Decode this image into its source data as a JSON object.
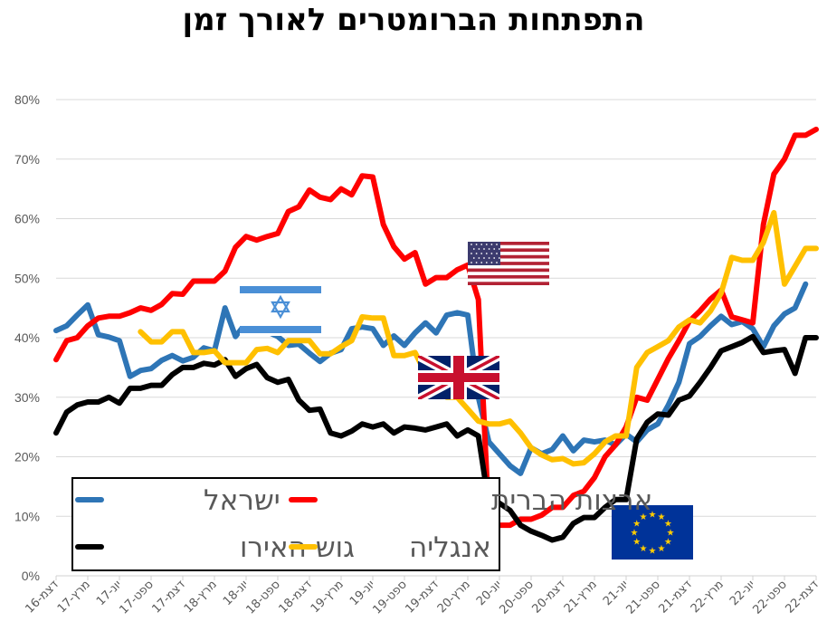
{
  "title": "התפתחות הברומטרים לאורך זמן",
  "chart_data": {
    "type": "line",
    "title": "התפתחות הברומטרים לאורך זמן",
    "ylim": [
      0,
      80
    ],
    "y_ticks": [
      "0%",
      "10%",
      "20%",
      "30%",
      "40%",
      "50%",
      "60%",
      "70%",
      "80%"
    ],
    "x_tick_labels": [
      "דצמ-16",
      "מרץ-17",
      "יונ-17",
      "ספט-17",
      "דצמ-17",
      "מרץ-18",
      "יונ-18",
      "ספט-18",
      "דצמ-18",
      "מרץ-19",
      "יונ-19",
      "ספט-19",
      "דצמ-19",
      "מרץ-20",
      "יונ-20",
      "ספט-20",
      "דצמ-20",
      "מרץ-21",
      "יונ-21",
      "ספט-21",
      "דצמ-21",
      "מרץ-22",
      "יונ-22",
      "ספט-22",
      "דצמ-22"
    ],
    "n_points": 73,
    "grid": true,
    "legend_position": "bottom-left",
    "series": [
      {
        "name": "ישראל",
        "color": "#2E75B6",
        "start_index": 0,
        "values": [
          41.2,
          42,
          43.8,
          45.5,
          40.5,
          40.1,
          39.5,
          33.5,
          34.5,
          34.8,
          36.2,
          37,
          36.1,
          36.7,
          38.3,
          37.8,
          45,
          40.2,
          42.5,
          41.5,
          41,
          40.2,
          38.7,
          38.9,
          37.4,
          36,
          37.4,
          38,
          41.5,
          41.8,
          41.5,
          38.7,
          40.3,
          38.7,
          40.8,
          42.5,
          40.8,
          43.8,
          44.2,
          43.8,
          30,
          22.5,
          20.5,
          18.5,
          17.2,
          21.5,
          20.5,
          21.2,
          23.5,
          21,
          22.8,
          22.5,
          22.8,
          22,
          23.8,
          22.5,
          24.5,
          25.5,
          28.7,
          32.5,
          39,
          40.2,
          42,
          43.6,
          42.2,
          42.7,
          41.5,
          38.5,
          42,
          44,
          45,
          49
        ]
      },
      {
        "name": "ארצות הברית",
        "color": "#FF0000",
        "start_index": 0,
        "values": [
          36.3,
          39.5,
          40,
          42,
          43.3,
          43.6,
          43.6,
          44.2,
          45,
          44.6,
          45.6,
          47.4,
          47.3,
          49.5,
          49.5,
          49.5,
          51.2,
          55.2,
          57,
          56.4,
          57,
          57.5,
          61.2,
          62,
          64.8,
          63.6,
          63.2,
          65,
          64,
          67.2,
          67,
          59,
          55.3,
          53.2,
          54.3,
          49,
          50.1,
          50.1,
          51.4,
          52.2,
          46.4,
          9.2,
          8.5,
          8.5,
          9.5,
          9.5,
          10.2,
          11.5,
          11.5,
          13.5,
          14.2,
          16.5,
          20,
          22,
          25,
          30,
          29.5,
          33,
          36.5,
          39.5,
          42.8,
          44.5,
          46.5,
          48,
          43.5,
          43,
          42.5,
          59,
          67.5,
          70,
          74,
          74,
          75
        ]
      },
      {
        "name": "גוש האירו",
        "color": "#000000",
        "start_index": 0,
        "values": [
          24,
          27.5,
          28.7,
          29.2,
          29.2,
          30,
          29,
          31.5,
          31.5,
          32,
          32,
          33.8,
          35,
          35,
          35.7,
          35.4,
          36.3,
          33.5,
          34.8,
          35.5,
          33.3,
          32.5,
          33,
          29.5,
          27.8,
          28,
          24,
          23.5,
          24.3,
          25.5,
          25,
          25.5,
          24,
          25,
          24.8,
          24.5,
          25,
          25.5,
          23.5,
          24.5,
          23.5,
          12,
          12.2,
          11,
          8.5,
          7.5,
          6.8,
          6,
          6.5,
          8.8,
          9.8,
          9.8,
          11.5,
          12.8,
          12.8,
          23,
          25.8,
          27.2,
          27,
          29.5,
          30.2,
          32.5,
          35,
          37.8,
          38.5,
          39.2,
          40.2,
          37.5,
          37.8,
          38,
          34,
          40,
          40
        ]
      },
      {
        "name": "אנגליה",
        "color": "#FFC000",
        "start_index": 8,
        "values": [
          41,
          39.3,
          39.3,
          41,
          41,
          37.5,
          37.5,
          37.8,
          35.8,
          35.8,
          35.8,
          38,
          38.2,
          37.5,
          39.5,
          39.5,
          39.5,
          37.3,
          37.3,
          38.5,
          39.5,
          43.5,
          43.3,
          43.3,
          37,
          37,
          37.5,
          34,
          32,
          30,
          30,
          28,
          26,
          25.5,
          25.5,
          26,
          24,
          21.5,
          20.3,
          19.5,
          19.7,
          18.8,
          19,
          20.5,
          22.5,
          23.5,
          23.5,
          35,
          37.5,
          38.5,
          39.5,
          41.8,
          43,
          42.5,
          44.5,
          47.5,
          53.5,
          53,
          53,
          56,
          61,
          49,
          52,
          55,
          55
        ]
      }
    ]
  },
  "flags": {
    "israel": "israel-flag",
    "usa": "usa-flag",
    "uk": "uk-flag",
    "eu": "eu-flag"
  },
  "legend": {
    "items": [
      {
        "label": "ישראל",
        "color": "#2E75B6"
      },
      {
        "label": "ארצות הברית",
        "color": "#FF0000"
      },
      {
        "label": "גוש האירו",
        "color": "#000000"
      },
      {
        "label": "אנגליה",
        "color": "#FFC000"
      }
    ]
  }
}
